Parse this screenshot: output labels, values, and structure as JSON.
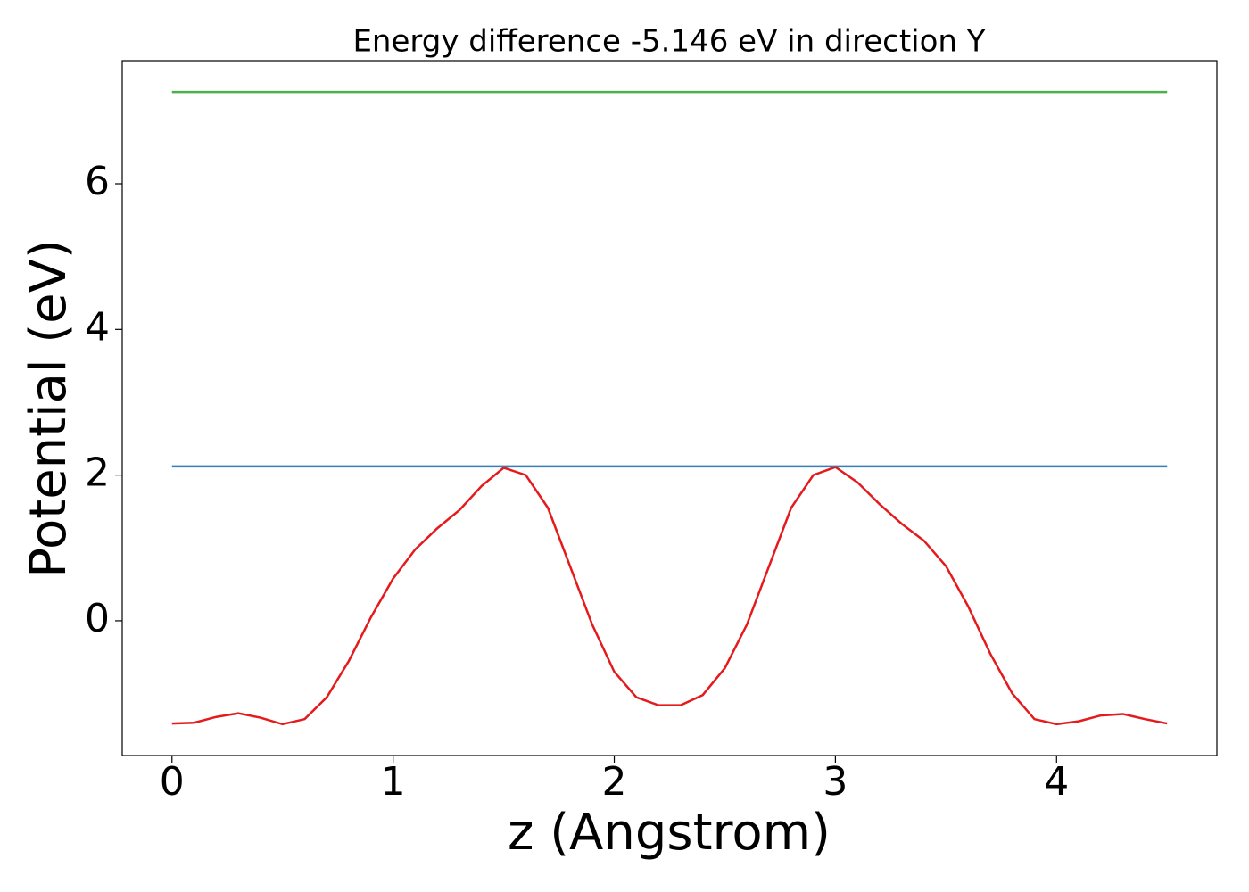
{
  "chart_data": {
    "type": "line",
    "title": "Energy difference -5.146 eV in direction Y",
    "xlabel": "z (Angstrom)",
    "ylabel": "Potential (eV)",
    "xlim": [
      -0.225,
      4.725
    ],
    "xticks": [
      0,
      1,
      2,
      3,
      4
    ],
    "ylim": [
      -1.85,
      7.69
    ],
    "yticks": [
      0,
      2,
      4,
      6
    ],
    "grid": false,
    "series": [
      {
        "color": "#4daf4a",
        "x": [
          0,
          4.5
        ],
        "values": [
          7.26,
          7.26
        ]
      },
      {
        "color": "#377eb8",
        "x": [
          0,
          4.5
        ],
        "values": [
          2.12,
          2.12
        ]
      },
      {
        "color": "#e41a1c",
        "x": [
          0,
          0.1,
          0.2,
          0.3,
          0.4,
          0.5,
          0.6,
          0.7,
          0.8,
          0.9,
          1.0,
          1.1,
          1.2,
          1.3,
          1.4,
          1.5,
          1.6,
          1.7,
          1.8,
          1.9,
          2.0,
          2.1,
          2.2,
          2.3,
          2.4,
          2.5,
          2.6,
          2.7,
          2.8,
          2.9,
          3.0,
          3.1,
          3.2,
          3.3,
          3.4,
          3.5,
          3.6,
          3.7,
          3.8,
          3.9,
          4.0,
          4.1,
          4.2,
          4.3,
          4.4,
          4.5
        ],
        "values": [
          -1.41,
          -1.4,
          -1.32,
          -1.27,
          -1.33,
          -1.42,
          -1.35,
          -1.05,
          -0.55,
          0.05,
          0.58,
          0.98,
          1.27,
          1.52,
          1.85,
          2.1,
          2.0,
          1.55,
          0.75,
          -0.05,
          -0.7,
          -1.05,
          -1.16,
          -1.16,
          -1.02,
          -0.65,
          -0.05,
          0.75,
          1.55,
          2.0,
          2.11,
          1.9,
          1.6,
          1.33,
          1.1,
          0.75,
          0.2,
          -0.45,
          -1.0,
          -1.35,
          -1.42,
          -1.38,
          -1.3,
          -1.28,
          -1.35,
          -1.41
        ]
      }
    ]
  }
}
